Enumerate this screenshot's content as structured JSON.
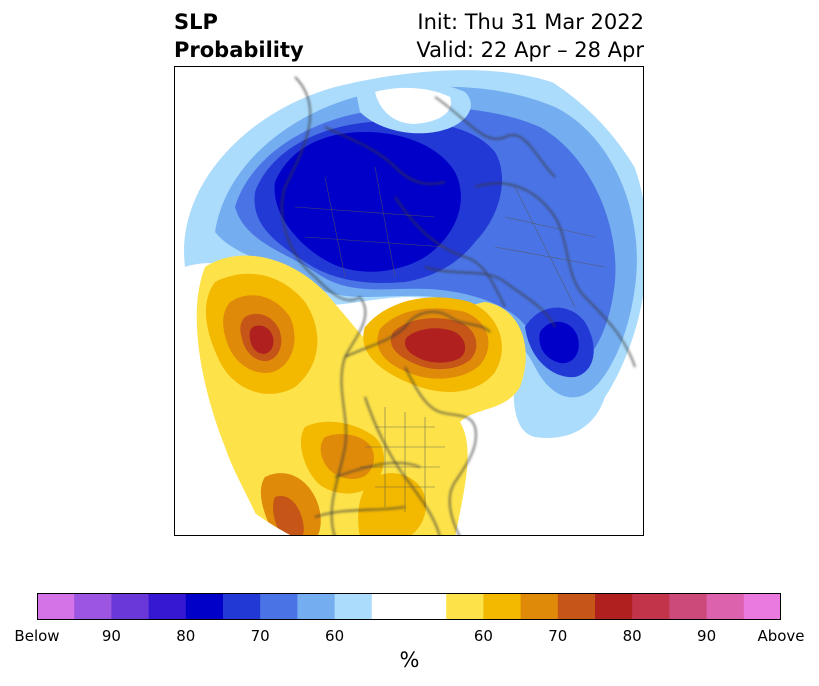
{
  "title": {
    "left_line1": "SLP",
    "left_line2": "Probability",
    "right_line1": "Init: Thu 31 Mar 2022",
    "right_line2": "Valid: 22 Apr – 28 Apr"
  },
  "colorbar": {
    "unit": "%",
    "colors": [
      "#d473e8",
      "#9c55e0",
      "#6a38d8",
      "#3718d2",
      "#0000c9",
      "#2339d6",
      "#4a74e6",
      "#74aef0",
      "#acdcfc",
      "#ffffff",
      "#ffffff",
      "#fde24a",
      "#f3b800",
      "#e08a0a",
      "#c55617",
      "#b0201e",
      "#c2344a",
      "#cc4a7a",
      "#dc62ae",
      "#ea7ae0"
    ],
    "labels": [
      "Below",
      "90",
      "80",
      "70",
      "60",
      "60",
      "70",
      "80",
      "90",
      "Above"
    ]
  },
  "map": {
    "projection": "north-polar-stereographic",
    "below_color": "#0000c9",
    "above_color": "#b0201e"
  }
}
